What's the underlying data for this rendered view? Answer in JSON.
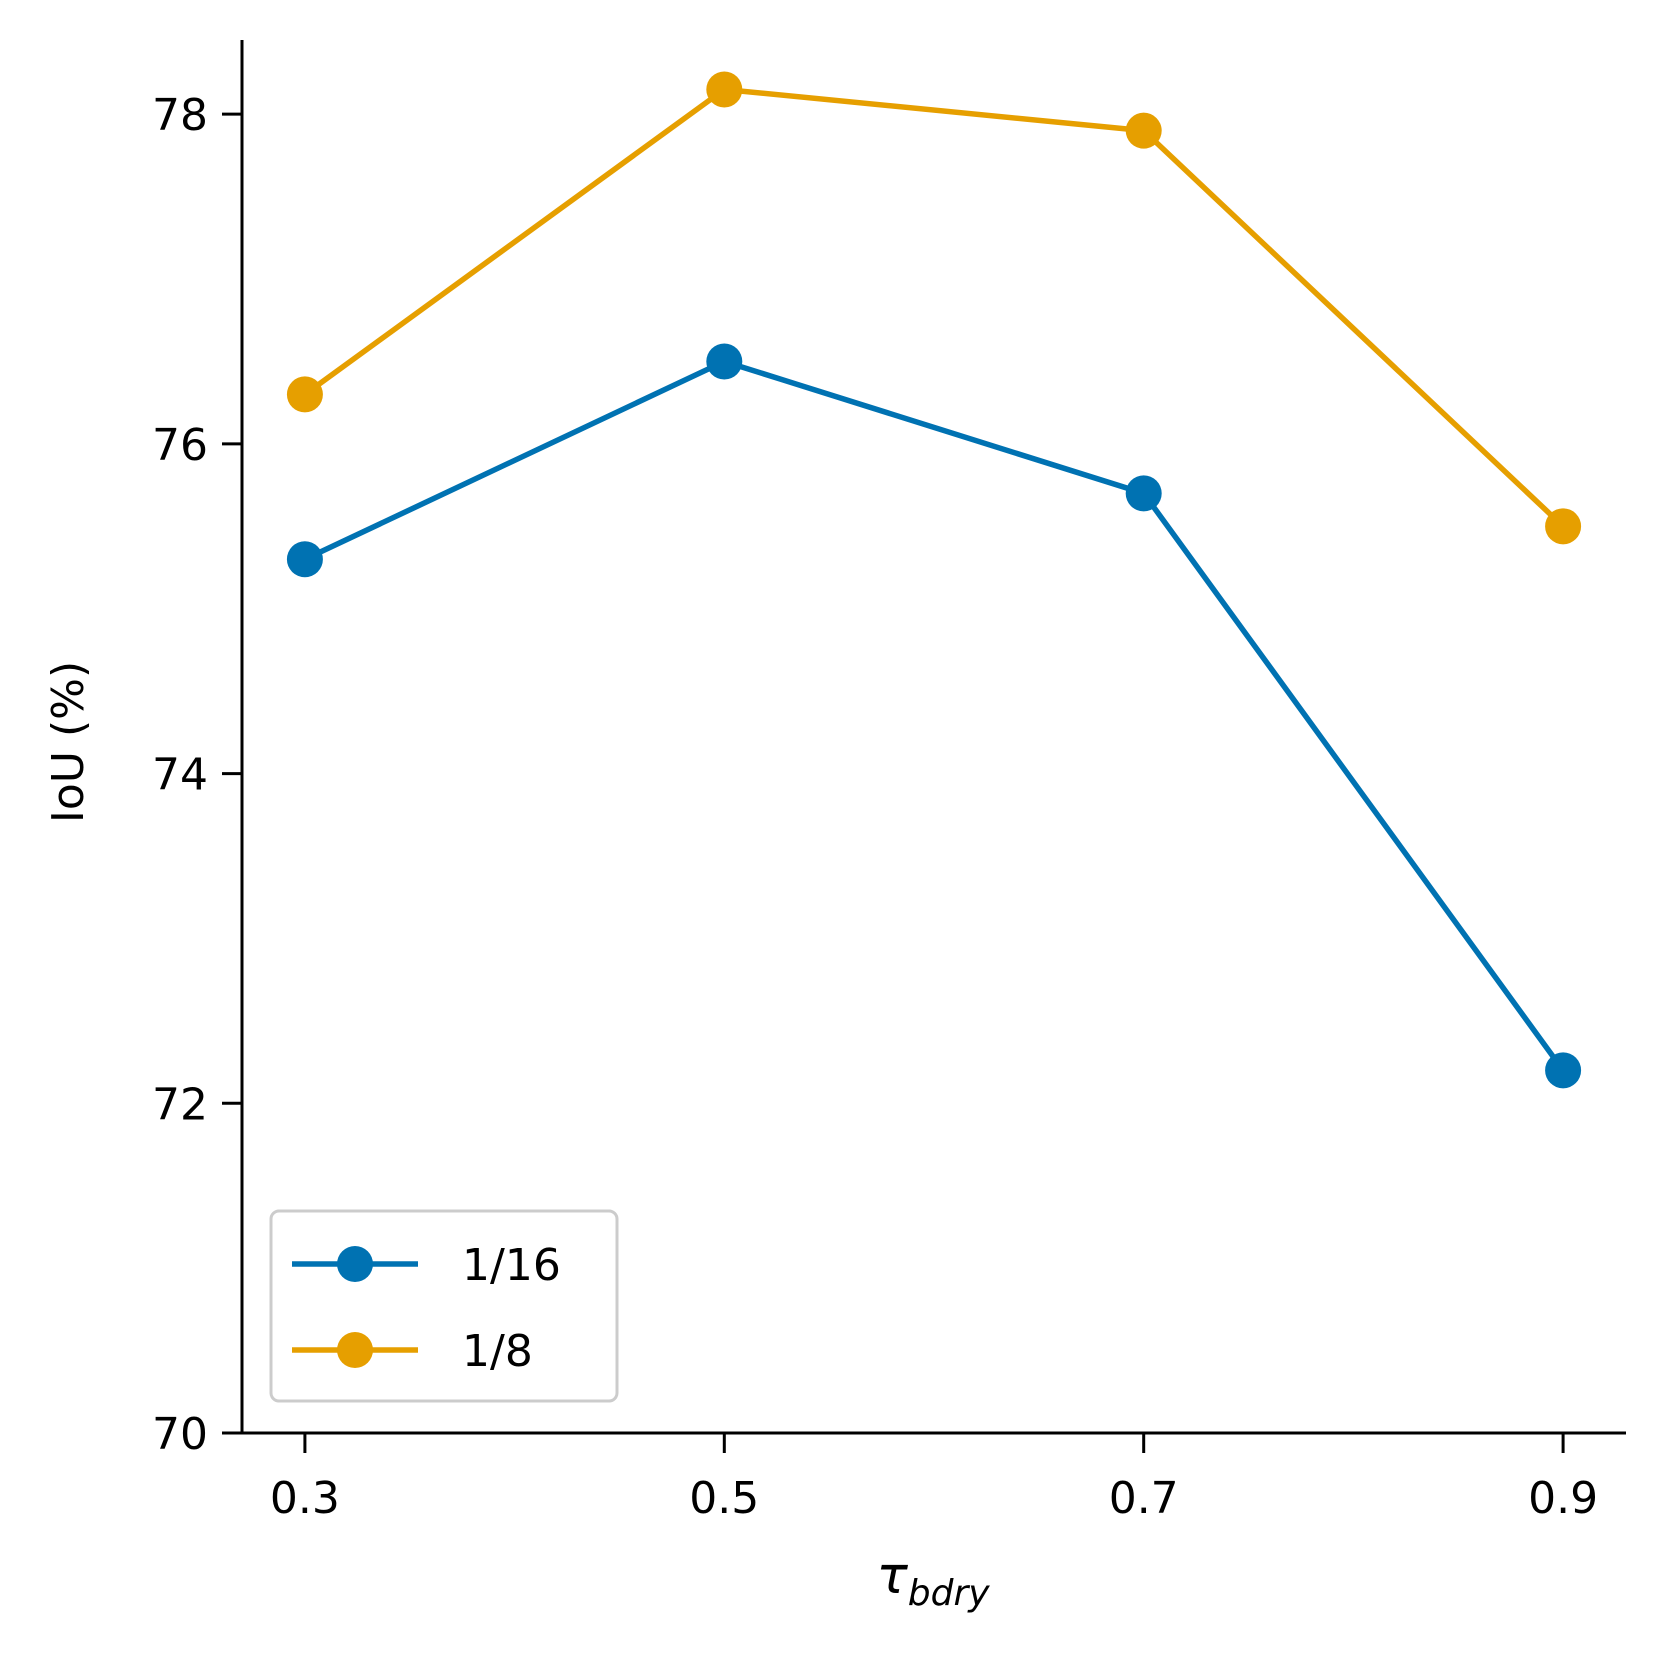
{
  "chart_data": {
    "type": "line",
    "title": "",
    "xlabel": {
      "symbol": "τ",
      "subscript": "bdry"
    },
    "ylabel": "IoU (%)",
    "x": [
      0.3,
      0.5,
      0.7,
      0.9
    ],
    "x_tick_labels": [
      "0.3",
      "0.5",
      "0.7",
      "0.9"
    ],
    "y_ticks": [
      70,
      72,
      74,
      76,
      78
    ],
    "y_tick_labels": [
      "70",
      "72",
      "74",
      "76",
      "78"
    ],
    "xlim": [
      0.27,
      0.93
    ],
    "ylim": [
      70,
      78.45
    ],
    "grid": false,
    "legend_position": "lower-left",
    "series": [
      {
        "name": "1/16",
        "color": "#0072B2",
        "marker": "circle",
        "values": [
          75.3,
          76.5,
          75.7,
          72.2
        ]
      },
      {
        "name": "1/8",
        "color": "#E69F00",
        "marker": "circle",
        "values": [
          76.3,
          78.15,
          77.9,
          75.5
        ]
      }
    ]
  }
}
